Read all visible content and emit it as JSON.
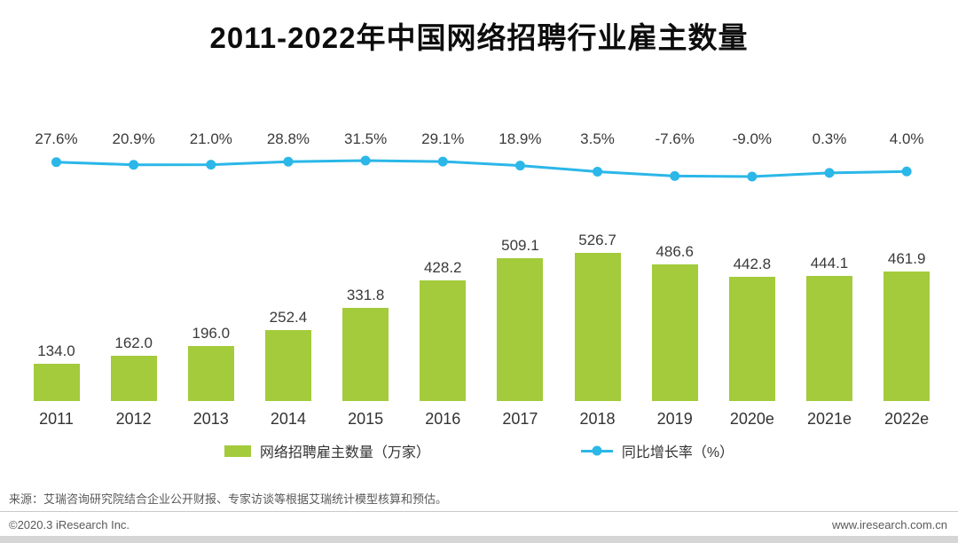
{
  "title": "2011-2022年中国网络招聘行业雇主数量",
  "chart_data": {
    "type": "bar",
    "categories": [
      "2011",
      "2012",
      "2013",
      "2014",
      "2015",
      "2016",
      "2017",
      "2018",
      "2019",
      "2020e",
      "2021e",
      "2022e"
    ],
    "series": [
      {
        "name": "网络招聘雇主数量（万家）",
        "type": "bar",
        "values": [
          134.0,
          162.0,
          196.0,
          252.4,
          331.8,
          428.2,
          509.1,
          526.7,
          486.6,
          442.8,
          444.1,
          461.9
        ]
      },
      {
        "name": "同比增长率（%）",
        "type": "line",
        "values": [
          27.6,
          20.9,
          21.0,
          28.8,
          31.5,
          29.1,
          18.9,
          3.5,
          -7.6,
          -9.0,
          0.3,
          4.0
        ]
      }
    ],
    "value_labels": [
      "134.0",
      "162.0",
      "196.0",
      "252.4",
      "331.8",
      "428.2",
      "509.1",
      "526.7",
      "486.6",
      "442.8",
      "444.1",
      "461.9"
    ],
    "growth_labels": [
      "27.6%",
      "20.9%",
      "21.0%",
      "28.8%",
      "31.5%",
      "29.1%",
      "18.9%",
      "3.5%",
      "-7.6%",
      "-9.0%",
      "0.3%",
      "4.0%"
    ],
    "title": "2011-2022年中国网络招聘行业雇主数量",
    "legend_position": "bottom",
    "grid": false
  },
  "legend": {
    "bar_label": "网络招聘雇主数量（万家）",
    "line_label": "同比增长率（%）"
  },
  "source": "来源：艾瑞咨询研究院结合企业公开财报、专家访谈等根据艾瑞统计模型核算和预估。",
  "footer": {
    "left": "©2020.3 iResearch Inc.",
    "right": "www.iresearch.com.cn"
  },
  "colors": {
    "bar": "#A3CB3B",
    "line": "#2BB7E8"
  }
}
